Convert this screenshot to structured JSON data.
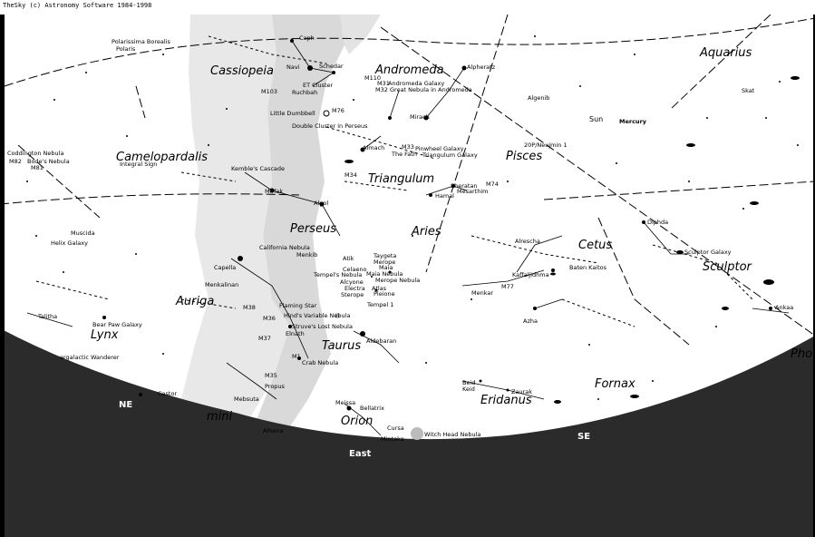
{
  "window": {
    "title": "TheSky (c) Astronomy Software 1984-1998"
  },
  "colors": {
    "horizon": "#2b2b2b",
    "milky_way_dark": "#dcdcdc",
    "milky_way_light": "#ebebeb",
    "compass_text": "#ffffff"
  },
  "compass": {
    "ne": "NE",
    "east": "East",
    "se": "SE"
  },
  "constellations": {
    "cassiopeia": "Cassiopeia",
    "andromeda": "Andromeda",
    "aquarius": "Aquarius",
    "camelopardalis": "Camelopardalis",
    "triangulum": "Triangulum",
    "pisces": "Pisces",
    "perseus": "Perseus",
    "aries": "Aries",
    "cetus": "Cetus",
    "sculptor": "Sculptor",
    "auriga": "Auriga",
    "lynx": "Lynx",
    "taurus": "Taurus",
    "fornax": "Fornax",
    "eridanus": "Eridanus",
    "orion": "Orion",
    "gemini": "mini",
    "phoenix": "Pho"
  },
  "objects": {
    "polarissima": "Polarissima Borealis",
    "polaris": "Polaris",
    "caph": "Caph",
    "navi": "Navi",
    "schedar": "Schedar",
    "et_cluster": "ET Cluster",
    "m103": "M103",
    "ruchbah": "Ruchbah",
    "m110": "M110",
    "m31": "M31",
    "andromeda_galaxy": "Andromeda Galaxy",
    "m32": "M32",
    "great_nebula": "Great Nebula in Andromeda",
    "alpheratz": "Alpheratz",
    "algenib": "Algenib",
    "skat": "Skat",
    "little_dumbbell": "Little Dumbbell",
    "m76": "M76",
    "mirach": "Mirach",
    "double_cluster": "Double Cluster in Perseus",
    "sun": "Sun",
    "mercury": "Mercury",
    "almach": "Almach",
    "m33": "M33",
    "pinwheel": "Pinwheel Galaxy",
    "the_fath": "The Fath",
    "triangulum_galaxy": "Triangulum Galaxy",
    "comet": "20P/Neujmin 1",
    "coddington": "Coddington Nebula",
    "m82": "M82",
    "bodes": "Bode's Nebula",
    "m81": "M81",
    "integral_sign": "Integral Sign",
    "kembles": "Kemble's Cascade",
    "m34": "M34",
    "mirfak": "Mirfak",
    "algol": "Algol",
    "hamal": "Hamal",
    "sheratan": "Sheratan",
    "mesarthim": "Mesarthim",
    "m74": "M74",
    "diphda": "Diphda",
    "muscida": "Muscida",
    "helix": "Helix Galaxy",
    "california": "California Nebula",
    "menkib": "Menkib",
    "atik": "Atik",
    "alrescha": "Alrescha",
    "sculptor_galaxy": "Sculptor Galaxy",
    "capella": "Capella",
    "taygeta": "Taygeta",
    "merope": "Merope",
    "celaeno": "Celaeno",
    "maia": "Maia",
    "tempels_nebula": "Tempel's Nebula",
    "maia_nebula": "Maia Nebula",
    "merope_nebula": "Merope Nebula",
    "alcyone": "Alcyone",
    "electra": "Electra",
    "atlas": "Atlas",
    "sterope": "Sterope",
    "pleione": "Pleione",
    "kaffaljidhma": "Kaffaljidhma",
    "baten_kaitos": "Baten Kaitos",
    "menkar": "Menkar",
    "m77": "M77",
    "menkalinan": "Menkalinan",
    "m38": "M38",
    "flaming_star": "Flaming Star",
    "tempel1": "Tempel 1",
    "talitha": "Talitha",
    "m36": "M36",
    "hinds": "Hind's Variable Nebula",
    "bear_paw": "Bear Paw Galaxy",
    "struves": "Struve's Lost Nebula",
    "m37": "M37",
    "elnath": "Elnath",
    "aldebaran": "Aldebaran",
    "azha": "Azha",
    "ankaa": "Ankaa",
    "galactic_wanderer": "ergalactic Wanderer",
    "m1": "M1",
    "crab": "Crab Nebula",
    "m35": "M35",
    "propus": "Propus",
    "zaurak": "Zaurak",
    "beid": "Beid",
    "keid": "Keid",
    "castor": "Castor",
    "mebsuta": "Mebsuta",
    "meissa": "Meissa",
    "bellatrix": "Bellatrix",
    "cursa": "Cursa",
    "witch_head": "Witch Head Nebula",
    "alhena": "Alhena",
    "mintaka": "Mintaka"
  }
}
